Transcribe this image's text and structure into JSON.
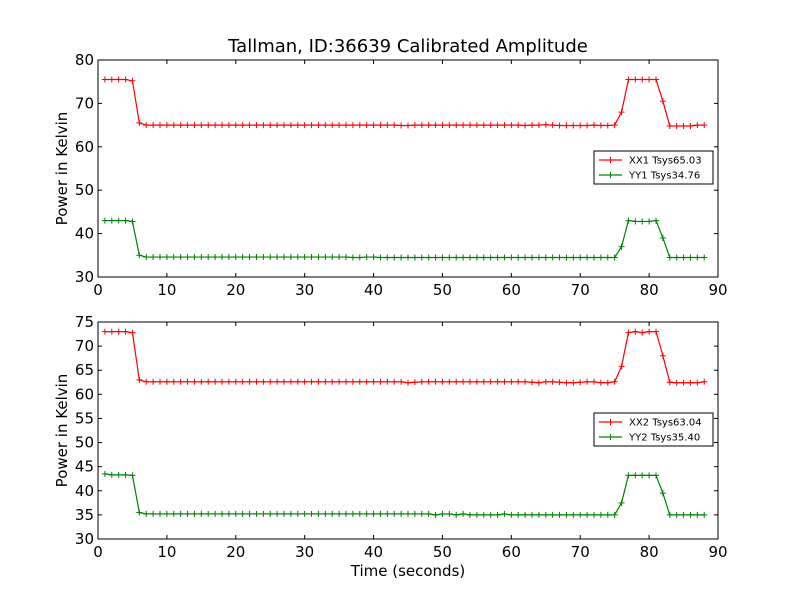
{
  "chart_data": [
    {
      "type": "line",
      "title": "Tallman, ID:36639 Calibrated Amplitude",
      "xlabel": "",
      "ylabel": "Power in Kelvin",
      "xlim": [
        0,
        90
      ],
      "ylim": [
        30,
        80
      ],
      "xticks": [
        0,
        10,
        20,
        30,
        40,
        50,
        60,
        70,
        80,
        90
      ],
      "yticks": [
        30,
        40,
        50,
        60,
        70,
        80
      ],
      "grid": false,
      "legend_position": "right",
      "x": [
        1,
        2,
        3,
        4,
        5,
        6,
        7,
        8,
        9,
        10,
        11,
        12,
        13,
        14,
        15,
        16,
        17,
        18,
        19,
        20,
        21,
        22,
        23,
        24,
        25,
        26,
        27,
        28,
        29,
        30,
        31,
        32,
        33,
        34,
        35,
        36,
        37,
        38,
        39,
        40,
        41,
        42,
        43,
        44,
        45,
        46,
        47,
        48,
        49,
        50,
        51,
        52,
        53,
        54,
        55,
        56,
        57,
        58,
        59,
        60,
        61,
        62,
        63,
        64,
        65,
        66,
        67,
        68,
        69,
        70,
        71,
        72,
        73,
        74,
        75,
        76,
        77,
        78,
        79,
        80,
        81,
        82,
        83,
        84,
        85,
        86,
        87,
        88
      ],
      "series": [
        {
          "name": "XX1 Tsys65.03",
          "color": "#ff0000",
          "values": [
            75.5,
            75.5,
            75.5,
            75.5,
            75.2,
            65.5,
            65.0,
            65.0,
            65.0,
            65.0,
            65.0,
            65.0,
            65.0,
            65.0,
            65.0,
            65.0,
            65.0,
            65.0,
            65.0,
            65.0,
            65.0,
            65.0,
            65.0,
            65.0,
            65.0,
            65.0,
            65.0,
            65.0,
            65.0,
            65.0,
            65.0,
            65.0,
            65.0,
            65.0,
            65.0,
            65.0,
            65.0,
            65.0,
            65.0,
            65.0,
            65.0,
            65.0,
            65.0,
            64.9,
            64.9,
            65.0,
            65.0,
            65.0,
            65.0,
            65.0,
            65.0,
            65.0,
            65.0,
            65.0,
            65.0,
            65.0,
            65.0,
            65.0,
            65.0,
            65.0,
            65.0,
            64.9,
            65.0,
            65.0,
            65.1,
            65.0,
            64.9,
            64.9,
            64.9,
            64.9,
            64.9,
            65.0,
            64.9,
            64.9,
            65.0,
            68.0,
            75.5,
            75.5,
            75.5,
            75.5,
            75.5,
            70.5,
            64.8,
            64.8,
            64.8,
            64.8,
            65.0,
            65.0
          ]
        },
        {
          "name": "YY1 Tsys34.76",
          "color": "#008000",
          "values": [
            43.0,
            43.0,
            43.0,
            43.0,
            42.8,
            35.0,
            34.6,
            34.6,
            34.6,
            34.6,
            34.6,
            34.6,
            34.6,
            34.6,
            34.6,
            34.6,
            34.6,
            34.6,
            34.6,
            34.6,
            34.6,
            34.6,
            34.6,
            34.6,
            34.6,
            34.6,
            34.6,
            34.6,
            34.6,
            34.6,
            34.6,
            34.6,
            34.6,
            34.6,
            34.6,
            34.6,
            34.5,
            34.5,
            34.6,
            34.6,
            34.5,
            34.5,
            34.5,
            34.5,
            34.5,
            34.5,
            34.5,
            34.5,
            34.5,
            34.5,
            34.5,
            34.5,
            34.5,
            34.5,
            34.5,
            34.5,
            34.5,
            34.5,
            34.5,
            34.5,
            34.5,
            34.5,
            34.5,
            34.5,
            34.5,
            34.5,
            34.5,
            34.5,
            34.5,
            34.5,
            34.5,
            34.5,
            34.5,
            34.5,
            34.5,
            37.0,
            43.0,
            42.8,
            42.8,
            42.8,
            43.0,
            39.0,
            34.5,
            34.5,
            34.5,
            34.5,
            34.5,
            34.5
          ]
        }
      ]
    },
    {
      "type": "line",
      "title": "",
      "xlabel": "Time (seconds)",
      "ylabel": "Power in Kelvin",
      "xlim": [
        0,
        90
      ],
      "ylim": [
        30,
        75
      ],
      "xticks": [
        0,
        10,
        20,
        30,
        40,
        50,
        60,
        70,
        80,
        90
      ],
      "yticks": [
        30,
        35,
        40,
        45,
        50,
        55,
        60,
        65,
        70,
        75
      ],
      "grid": false,
      "legend_position": "right",
      "x": [
        1,
        2,
        3,
        4,
        5,
        6,
        7,
        8,
        9,
        10,
        11,
        12,
        13,
        14,
        15,
        16,
        17,
        18,
        19,
        20,
        21,
        22,
        23,
        24,
        25,
        26,
        27,
        28,
        29,
        30,
        31,
        32,
        33,
        34,
        35,
        36,
        37,
        38,
        39,
        40,
        41,
        42,
        43,
        44,
        45,
        46,
        47,
        48,
        49,
        50,
        51,
        52,
        53,
        54,
        55,
        56,
        57,
        58,
        59,
        60,
        61,
        62,
        63,
        64,
        65,
        66,
        67,
        68,
        69,
        70,
        71,
        72,
        73,
        74,
        75,
        76,
        77,
        78,
        79,
        80,
        81,
        82,
        83,
        84,
        85,
        86,
        87,
        88
      ],
      "series": [
        {
          "name": "XX2 Tsys63.04",
          "color": "#ff0000",
          "values": [
            73.0,
            73.0,
            73.0,
            73.0,
            72.8,
            63.0,
            62.6,
            62.6,
            62.6,
            62.6,
            62.6,
            62.6,
            62.6,
            62.6,
            62.6,
            62.6,
            62.6,
            62.6,
            62.6,
            62.6,
            62.6,
            62.6,
            62.6,
            62.6,
            62.6,
            62.6,
            62.6,
            62.6,
            62.6,
            62.6,
            62.6,
            62.6,
            62.6,
            62.6,
            62.6,
            62.6,
            62.6,
            62.6,
            62.6,
            62.6,
            62.6,
            62.6,
            62.6,
            62.6,
            62.4,
            62.5,
            62.6,
            62.6,
            62.6,
            62.6,
            62.6,
            62.6,
            62.6,
            62.6,
            62.6,
            62.6,
            62.6,
            62.6,
            62.6,
            62.6,
            62.6,
            62.6,
            62.5,
            62.4,
            62.6,
            62.6,
            62.5,
            62.4,
            62.4,
            62.5,
            62.6,
            62.6,
            62.4,
            62.4,
            62.6,
            65.8,
            72.8,
            73.0,
            72.8,
            73.0,
            73.0,
            68.0,
            62.5,
            62.4,
            62.4,
            62.4,
            62.4,
            62.6
          ]
        },
        {
          "name": "YY2 Tsys35.40",
          "color": "#008000",
          "values": [
            43.5,
            43.3,
            43.3,
            43.3,
            43.2,
            35.5,
            35.2,
            35.2,
            35.2,
            35.2,
            35.2,
            35.2,
            35.2,
            35.2,
            35.2,
            35.2,
            35.2,
            35.2,
            35.2,
            35.2,
            35.2,
            35.2,
            35.2,
            35.2,
            35.2,
            35.2,
            35.2,
            35.2,
            35.2,
            35.2,
            35.2,
            35.2,
            35.2,
            35.2,
            35.2,
            35.2,
            35.2,
            35.2,
            35.2,
            35.2,
            35.2,
            35.2,
            35.2,
            35.2,
            35.2,
            35.2,
            35.2,
            35.2,
            35.0,
            35.2,
            35.2,
            35.0,
            35.2,
            35.0,
            35.0,
            35.0,
            35.0,
            35.0,
            35.2,
            35.0,
            35.0,
            35.0,
            35.0,
            35.0,
            35.0,
            35.0,
            35.0,
            35.0,
            35.0,
            35.0,
            35.0,
            35.0,
            35.0,
            35.0,
            35.0,
            37.5,
            43.2,
            43.2,
            43.2,
            43.2,
            43.2,
            39.5,
            35.0,
            35.0,
            35.0,
            35.0,
            35.0,
            35.0
          ]
        }
      ]
    }
  ]
}
